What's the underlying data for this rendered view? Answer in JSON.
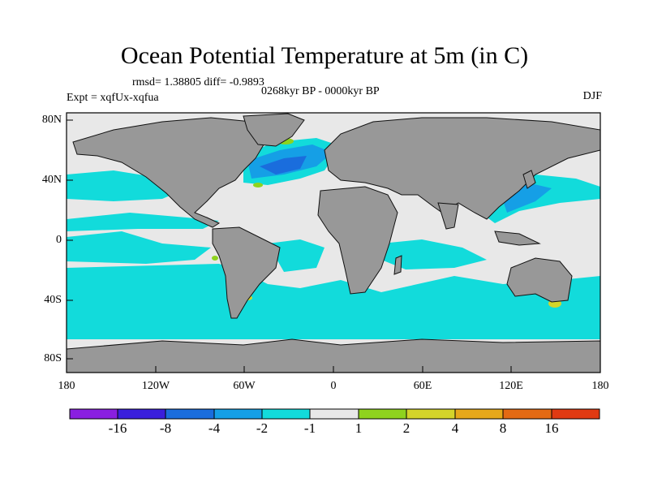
{
  "title": "Ocean Potential Temperature at 5m (in C)",
  "stats": "rmsd= 1.38805 diff= -0.9893",
  "experiment": "Expt = xqfUx-xqfua",
  "period": "0268kyr BP - 0000kyr BP",
  "season": "DJF",
  "lat_ticks": [
    "80N",
    "40N",
    "0",
    "40S",
    "80S"
  ],
  "lon_ticks": [
    "180",
    "120W",
    "60W",
    "0",
    "60E",
    "120E",
    "180"
  ],
  "colorbar": {
    "colors": [
      "#8a1fe0",
      "#3a1fdc",
      "#1a6ddd",
      "#159fe6",
      "#12dbdb",
      "#e8e8e8",
      "#8fd31e",
      "#d4d42a",
      "#e6a81a",
      "#e46a14",
      "#e03a12"
    ],
    "labels": [
      "-16",
      "-8",
      "-4",
      "-2",
      "-1",
      "1",
      "2",
      "4",
      "8",
      "16"
    ]
  },
  "colors": {
    "land": "#989898",
    "ocean_neutral": "#e8e8e8",
    "cool_1": "#12dbdb",
    "cool_2": "#159fe6",
    "cool_3": "#1a6ddd",
    "cool_4": "#3a1fdc",
    "warm_1": "#8fd31e",
    "warm_2": "#d4d42a"
  }
}
